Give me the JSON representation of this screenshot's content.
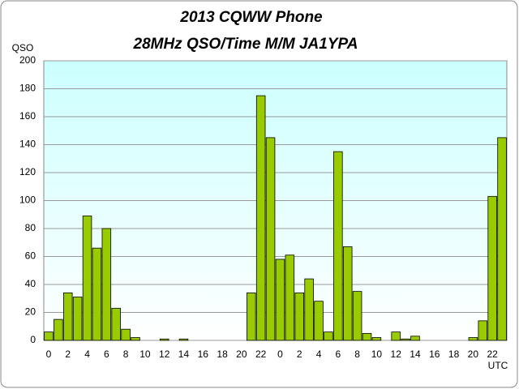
{
  "chart_data": {
    "type": "bar",
    "title": "2013  CQWW Phone",
    "subtitle": "28MHz QSO/Time  M/M JA1YPA",
    "y_label": "QSO",
    "x_label": "UTC",
    "categories": [
      "0",
      null,
      "2",
      null,
      "4",
      null,
      "6",
      null,
      "8",
      null,
      "10",
      null,
      "12",
      null,
      "14",
      null,
      "16",
      null,
      "18",
      null,
      "20",
      null,
      "22",
      null,
      "0",
      null,
      "2",
      null,
      "4",
      null,
      "6",
      null,
      "8",
      null,
      "10",
      null,
      "12",
      null,
      "14",
      null,
      "16",
      null,
      "18",
      null,
      "20",
      null,
      "22",
      null
    ],
    "values": [
      6,
      15,
      34,
      31,
      89,
      66,
      80,
      23,
      8,
      2,
      0,
      0,
      1,
      0,
      1,
      0,
      0,
      0,
      0,
      0,
      0,
      34,
      175,
      145,
      58,
      61,
      34,
      44,
      28,
      6,
      135,
      67,
      35,
      5,
      2,
      0,
      6,
      1,
      3,
      0,
      0,
      0,
      0,
      0,
      2,
      14,
      103,
      145
    ],
    "color": "#99cc00",
    "ylim": [
      0,
      200
    ],
    "yticks": [
      0,
      20,
      40,
      60,
      80,
      100,
      120,
      140,
      160,
      180,
      200
    ],
    "grid": true
  }
}
